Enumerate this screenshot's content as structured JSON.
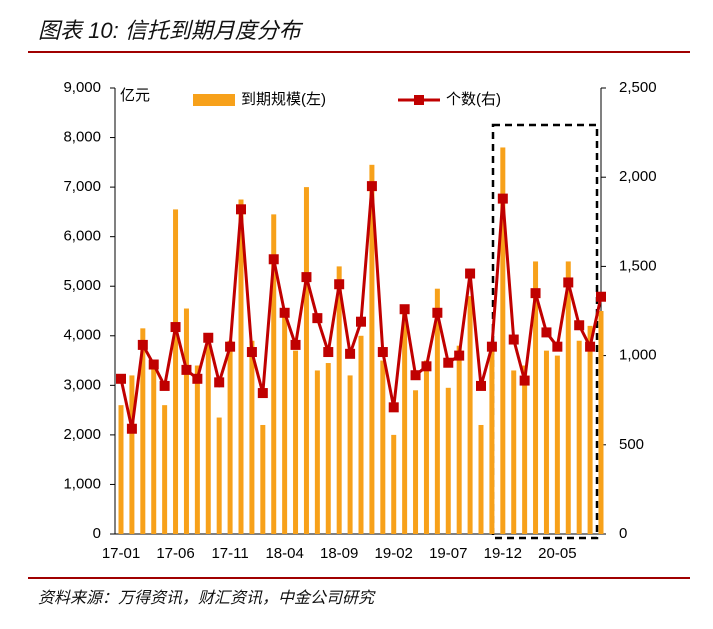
{
  "chart_data": {
    "type": "bar_line",
    "title": "图表 10: 信托到期月度分布",
    "source": "资料来源：万得资讯，财汇资讯，中金公司研究",
    "y_unit": "亿元",
    "categories": [
      "17-01",
      null,
      null,
      null,
      null,
      "17-06",
      null,
      null,
      null,
      null,
      "17-11",
      null,
      null,
      null,
      null,
      "18-04",
      null,
      null,
      null,
      null,
      "18-09",
      null,
      null,
      null,
      null,
      "19-02",
      null,
      null,
      null,
      null,
      "19-07",
      null,
      null,
      null,
      null,
      "19-12",
      null,
      null,
      null,
      null,
      "20-05",
      null,
      null,
      null,
      null
    ],
    "series": [
      {
        "name": "到期规模(左)",
        "color": "#f7a11a",
        "type": "bar",
        "axis": "y",
        "values": [
          2600,
          3200,
          4150,
          3500,
          2600,
          6550,
          4550,
          3400,
          3900,
          2350,
          3900,
          6750,
          3900,
          2200,
          6450,
          4500,
          3700,
          7000,
          3300,
          3450,
          5400,
          3200,
          4000,
          7450,
          3500,
          2000,
          4500,
          2900,
          3500,
          4950,
          2950,
          3800,
          4800,
          2200,
          3800,
          7800,
          3300,
          3400,
          5500,
          3700,
          3600,
          5500,
          3900,
          4200,
          4500
        ]
      },
      {
        "name": "个数(右)",
        "color": "#c00000",
        "type": "line",
        "axis": "y2",
        "values": [
          870,
          590,
          1060,
          950,
          830,
          1160,
          920,
          870,
          1100,
          850,
          1050,
          1820,
          1020,
          790,
          1540,
          1240,
          1060,
          1440,
          1210,
          1020,
          1400,
          1010,
          1190,
          1950,
          1020,
          710,
          1260,
          890,
          940,
          1240,
          960,
          1000,
          1460,
          830,
          1050,
          1880,
          1090,
          860,
          1350,
          1130,
          1050,
          1410,
          1170,
          1050,
          1330
        ]
      }
    ],
    "ylim": [
      0,
      9000
    ],
    "yticks": [
      0,
      {
        "value": 1000,
        "label": "1,000"
      },
      {
        "value": 2000,
        "label": "2,000"
      },
      {
        "value": 3000,
        "label": "3,000"
      },
      {
        "value": 4000,
        "label": "4,000"
      },
      {
        "value": 5000,
        "label": "5,000"
      },
      {
        "value": 6000,
        "label": "6,000"
      },
      {
        "value": 7000,
        "label": "7,000"
      },
      {
        "value": 8000,
        "label": "8,000"
      },
      {
        "value": 9000,
        "label": "9,000"
      }
    ],
    "y2lim": [
      0,
      2500
    ],
    "y2ticks": [
      0,
      500,
      {
        "value": 1000,
        "label": "1,000"
      },
      {
        "value": 1500,
        "label": "1,500"
      },
      {
        "value": 2000,
        "label": "2,000"
      },
      {
        "value": 2500,
        "label": "2,500"
      }
    ]
  }
}
